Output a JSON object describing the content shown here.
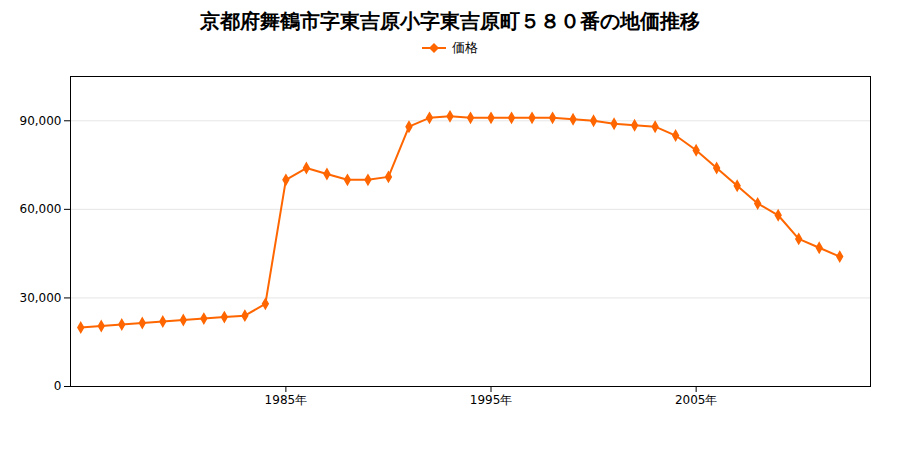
{
  "chart_data": {
    "type": "line",
    "title": "京都府舞鶴市字東吉原小字東吉原町５８０番の地価推移",
    "x": [
      1975,
      1976,
      1977,
      1978,
      1979,
      1980,
      1981,
      1982,
      1983,
      1984,
      1985,
      1986,
      1987,
      1988,
      1989,
      1990,
      1991,
      1992,
      1993,
      1994,
      1995,
      1996,
      1997,
      1998,
      1999,
      2000,
      2001,
      2002,
      2003,
      2004,
      2005,
      2006,
      2007,
      2008,
      2009,
      2010,
      2011,
      2012
    ],
    "series": [
      {
        "name": "価格",
        "color": "#FF6600",
        "marker": "diamond",
        "values": [
          20000,
          20500,
          21000,
          21500,
          22000,
          22500,
          23000,
          23500,
          24000,
          28000,
          70000,
          74000,
          72000,
          70000,
          70000,
          71000,
          88000,
          91000,
          91500,
          91000,
          91000,
          91000,
          91000,
          91000,
          90500,
          90000,
          89000,
          88500,
          88000,
          85000,
          80000,
          74000,
          68000,
          62000,
          58000,
          50000,
          47000,
          44000
        ]
      }
    ],
    "xlim": [
      1974.5,
      2013.5
    ],
    "xticks": [
      {
        "value": 1985,
        "label": "1985年"
      },
      {
        "value": 1995,
        "label": "1995年"
      },
      {
        "value": 2005,
        "label": "2005年"
      }
    ],
    "ylim": [
      0,
      105000
    ],
    "yticks": [
      0,
      {
        "value": 30000,
        "label": "30,000"
      },
      {
        "value": 60000,
        "label": "60,000"
      },
      {
        "value": 90000,
        "label": "90,000"
      }
    ],
    "grid": "y",
    "legend": "top"
  }
}
